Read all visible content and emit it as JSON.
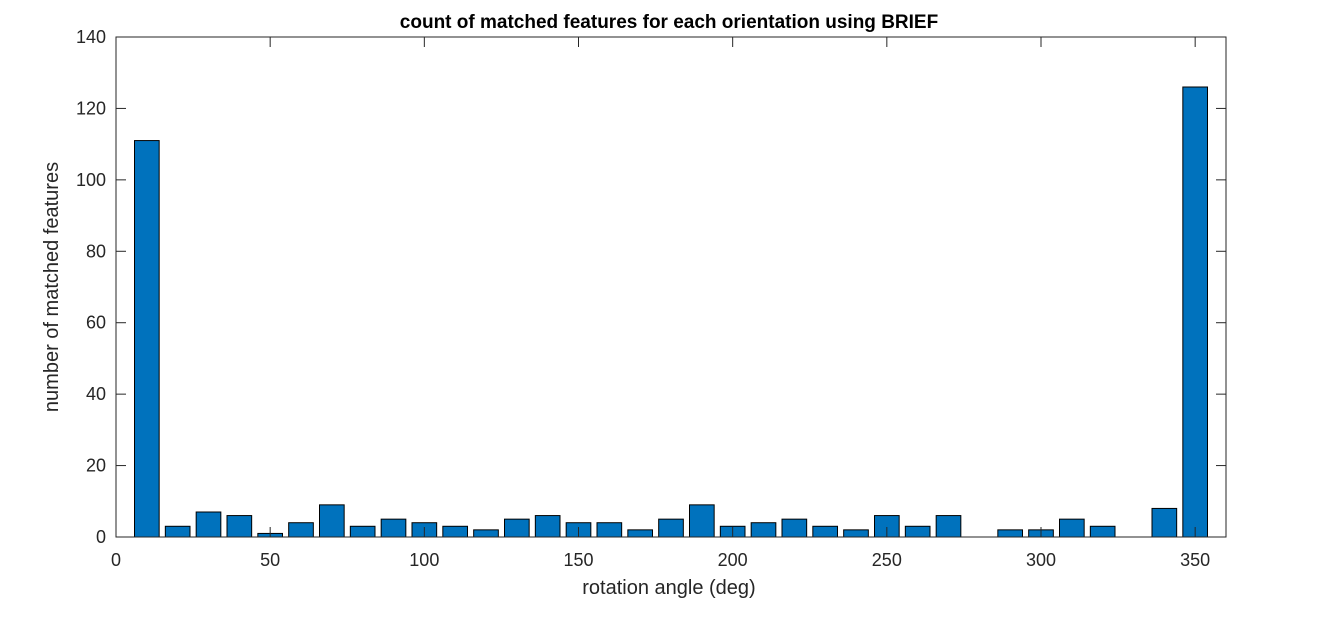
{
  "chart_data": {
    "type": "bar",
    "title": "count of matched features for each orientation using BRIEF",
    "xlabel": "rotation angle (deg)",
    "ylabel": "number of matched features",
    "xlim": [
      0,
      360
    ],
    "ylim": [
      0,
      140
    ],
    "xticks": [
      0,
      50,
      100,
      150,
      200,
      250,
      300,
      350
    ],
    "yticks": [
      0,
      20,
      40,
      60,
      80,
      100,
      120,
      140
    ],
    "x": [
      10,
      20,
      30,
      40,
      50,
      60,
      70,
      80,
      90,
      100,
      110,
      120,
      130,
      140,
      150,
      160,
      170,
      180,
      190,
      200,
      210,
      220,
      230,
      240,
      250,
      260,
      270,
      280,
      290,
      300,
      310,
      320,
      330,
      340,
      350
    ],
    "values": [
      111,
      3,
      7,
      6,
      1,
      4,
      9,
      3,
      5,
      4,
      3,
      2,
      5,
      6,
      4,
      4,
      2,
      5,
      9,
      3,
      4,
      5,
      3,
      2,
      6,
      3,
      6,
      0,
      2,
      2,
      5,
      3,
      0,
      8,
      126
    ],
    "bar_color": "#0072BD",
    "grid": false,
    "box": true
  }
}
